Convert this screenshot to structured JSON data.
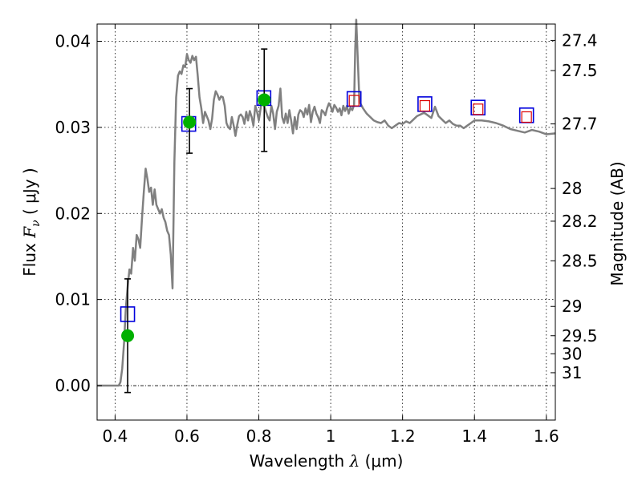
{
  "chart_data": {
    "type": "line",
    "xlabel": {
      "prefix": "Wavelength",
      "symbol": "λ",
      "unit": "(μm)"
    },
    "ylabel": {
      "prefix": "Flux",
      "symbol": "F",
      "subscript": "ν",
      "unit": "( μJy )"
    },
    "ylabel_right": "Magnitude (AB)",
    "xlim": [
      0.35,
      1.625
    ],
    "ylim": [
      -0.004,
      0.042
    ],
    "grid": true,
    "x_ticks": [
      {
        "value": 0.4,
        "label": "0.4"
      },
      {
        "value": 0.6,
        "label": "0.6"
      },
      {
        "value": 0.8,
        "label": "0.8"
      },
      {
        "value": 1.0,
        "label": "1"
      },
      {
        "value": 1.2,
        "label": "1.2"
      },
      {
        "value": 1.4,
        "label": "1.4"
      },
      {
        "value": 1.6,
        "label": "1.6"
      }
    ],
    "y_ticks": [
      {
        "value": 0.0,
        "label": "0.00"
      },
      {
        "value": 0.01,
        "label": "0.01"
      },
      {
        "value": 0.02,
        "label": "0.02"
      },
      {
        "value": 0.03,
        "label": "0.03"
      },
      {
        "value": 0.04,
        "label": "0.04"
      }
    ],
    "mag_ticks": [
      {
        "flux": 0.0401,
        "label": "27.4"
      },
      {
        "flux": 0.0366,
        "label": "27.5"
      },
      {
        "flux": 0.0304,
        "label": "27.7"
      },
      {
        "flux": 0.0229,
        "label": "28"
      },
      {
        "flux": 0.0191,
        "label": "28.2"
      },
      {
        "flux": 0.0145,
        "label": "28.5"
      },
      {
        "flux": 0.0092,
        "label": "29"
      },
      {
        "flux": 0.0058,
        "label": "29.5"
      },
      {
        "flux": 0.0037,
        "label": "30"
      },
      {
        "flux": 0.0015,
        "label": "31"
      }
    ],
    "colors": {
      "model_line": "#808080",
      "observed": "#00b000",
      "model_boxes": "#0000dd",
      "upper_boxes": "#dd0000",
      "errorbar": "#000000",
      "grid": "#000000",
      "zero_line": "#000000"
    },
    "series": [
      {
        "type": "line",
        "x": [
          0.35,
          0.41,
          0.415,
          0.42,
          0.425,
          0.43,
          0.435,
          0.44,
          0.445,
          0.45,
          0.455,
          0.46,
          0.465,
          0.47,
          0.475,
          0.48,
          0.485,
          0.49,
          0.495,
          0.5,
          0.505,
          0.51,
          0.515,
          0.52,
          0.525,
          0.53,
          0.535,
          0.54,
          0.545,
          0.55,
          0.555,
          0.56,
          0.565,
          0.57,
          0.575,
          0.58,
          0.585,
          0.59,
          0.595,
          0.6,
          0.605,
          0.61,
          0.615,
          0.62,
          0.625,
          0.63,
          0.635,
          0.64,
          0.645,
          0.65,
          0.655,
          0.66,
          0.665,
          0.67,
          0.675,
          0.68,
          0.685,
          0.69,
          0.695,
          0.7,
          0.705,
          0.71,
          0.715,
          0.72,
          0.725,
          0.73,
          0.735,
          0.74,
          0.745,
          0.75,
          0.755,
          0.76,
          0.765,
          0.77,
          0.775,
          0.78,
          0.785,
          0.79,
          0.795,
          0.8,
          0.805,
          0.81,
          0.815,
          0.82,
          0.825,
          0.83,
          0.835,
          0.84,
          0.845,
          0.85,
          0.855,
          0.86,
          0.865,
          0.87,
          0.875,
          0.88,
          0.885,
          0.89,
          0.895,
          0.9,
          0.905,
          0.91,
          0.915,
          0.92,
          0.925,
          0.93,
          0.935,
          0.94,
          0.945,
          0.95,
          0.955,
          0.96,
          0.965,
          0.97,
          0.975,
          0.98,
          0.985,
          0.99,
          0.995,
          1.0,
          1.005,
          1.01,
          1.015,
          1.02,
          1.025,
          1.03,
          1.035,
          1.04,
          1.045,
          1.05,
          1.055,
          1.06,
          1.065,
          1.068,
          1.071,
          1.075,
          1.08,
          1.09,
          1.1,
          1.11,
          1.12,
          1.13,
          1.14,
          1.15,
          1.16,
          1.17,
          1.18,
          1.19,
          1.2,
          1.21,
          1.22,
          1.23,
          1.24,
          1.25,
          1.26,
          1.27,
          1.28,
          1.29,
          1.3,
          1.31,
          1.32,
          1.33,
          1.34,
          1.35,
          1.36,
          1.37,
          1.38,
          1.39,
          1.4,
          1.42,
          1.44,
          1.46,
          1.48,
          1.5,
          1.52,
          1.54,
          1.56,
          1.58,
          1.6,
          1.625
        ],
        "y": [
          0.0,
          0.0,
          0.0004,
          0.002,
          0.005,
          0.009,
          0.0115,
          0.0135,
          0.013,
          0.016,
          0.0145,
          0.0175,
          0.017,
          0.016,
          0.0195,
          0.0225,
          0.0252,
          0.024,
          0.0225,
          0.023,
          0.021,
          0.0228,
          0.021,
          0.0205,
          0.02,
          0.0205,
          0.0195,
          0.019,
          0.018,
          0.0175,
          0.0152,
          0.0113,
          0.026,
          0.0335,
          0.036,
          0.0365,
          0.0362,
          0.0372,
          0.037,
          0.0385,
          0.0378,
          0.0375,
          0.0383,
          0.0378,
          0.0382,
          0.036,
          0.0335,
          0.0322,
          0.0305,
          0.0318,
          0.0313,
          0.0308,
          0.0298,
          0.031,
          0.0332,
          0.0342,
          0.0338,
          0.0332,
          0.0336,
          0.0335,
          0.0325,
          0.0305,
          0.03,
          0.0298,
          0.0312,
          0.0302,
          0.029,
          0.0303,
          0.0313,
          0.0315,
          0.0312,
          0.0304,
          0.0318,
          0.0308,
          0.0319,
          0.0312,
          0.0302,
          0.0325,
          0.0318,
          0.0308,
          0.0322,
          0.0338,
          0.0325,
          0.0318,
          0.0312,
          0.0308,
          0.0325,
          0.0316,
          0.0298,
          0.0318,
          0.0325,
          0.0345,
          0.0312,
          0.0305,
          0.0316,
          0.0305,
          0.032,
          0.0308,
          0.0293,
          0.0312,
          0.0298,
          0.0315,
          0.032,
          0.0318,
          0.0312,
          0.0322,
          0.0315,
          0.0326,
          0.0306,
          0.0318,
          0.0324,
          0.0316,
          0.0312,
          0.0305,
          0.032,
          0.0318,
          0.0314,
          0.0322,
          0.0328,
          0.0324,
          0.0318,
          0.0326,
          0.0323,
          0.0318,
          0.0322,
          0.0314,
          0.0325,
          0.0319,
          0.0325,
          0.0316,
          0.0323,
          0.032,
          0.0326,
          0.039,
          0.0425,
          0.0382,
          0.033,
          0.0322,
          0.0316,
          0.0312,
          0.0308,
          0.0306,
          0.0305,
          0.0308,
          0.0302,
          0.0299,
          0.0302,
          0.0305,
          0.0304,
          0.0307,
          0.0305,
          0.0309,
          0.0313,
          0.0315,
          0.0317,
          0.0314,
          0.0311,
          0.0324,
          0.0313,
          0.0309,
          0.0305,
          0.0308,
          0.0304,
          0.0302,
          0.0302,
          0.0299,
          0.0302,
          0.0305,
          0.0308,
          0.0308,
          0.0307,
          0.0305,
          0.0302,
          0.0298,
          0.0296,
          0.0294,
          0.0297,
          0.0295,
          0.0292,
          0.0293
        ]
      },
      {
        "type": "scatter",
        "x": [
          0.435,
          0.607,
          0.815
        ],
        "y": [
          0.0058,
          0.0306,
          0.0332
        ],
        "yerr_low": [
          0.0066,
          0.0036,
          0.006
        ],
        "yerr_high": [
          0.0066,
          0.0039,
          0.0059
        ]
      },
      {
        "type": "scatter",
        "x": [
          0.435,
          0.605,
          0.814,
          1.065,
          1.262,
          1.41,
          1.545
        ],
        "y": [
          0.0083,
          0.0304,
          0.0334,
          0.0333,
          0.0327,
          0.0323,
          0.0314
        ]
      },
      {
        "type": "scatter",
        "x": [
          1.065,
          1.262,
          1.41,
          1.545
        ],
        "y": [
          0.0331,
          0.0325,
          0.0321,
          0.0312
        ]
      }
    ]
  }
}
